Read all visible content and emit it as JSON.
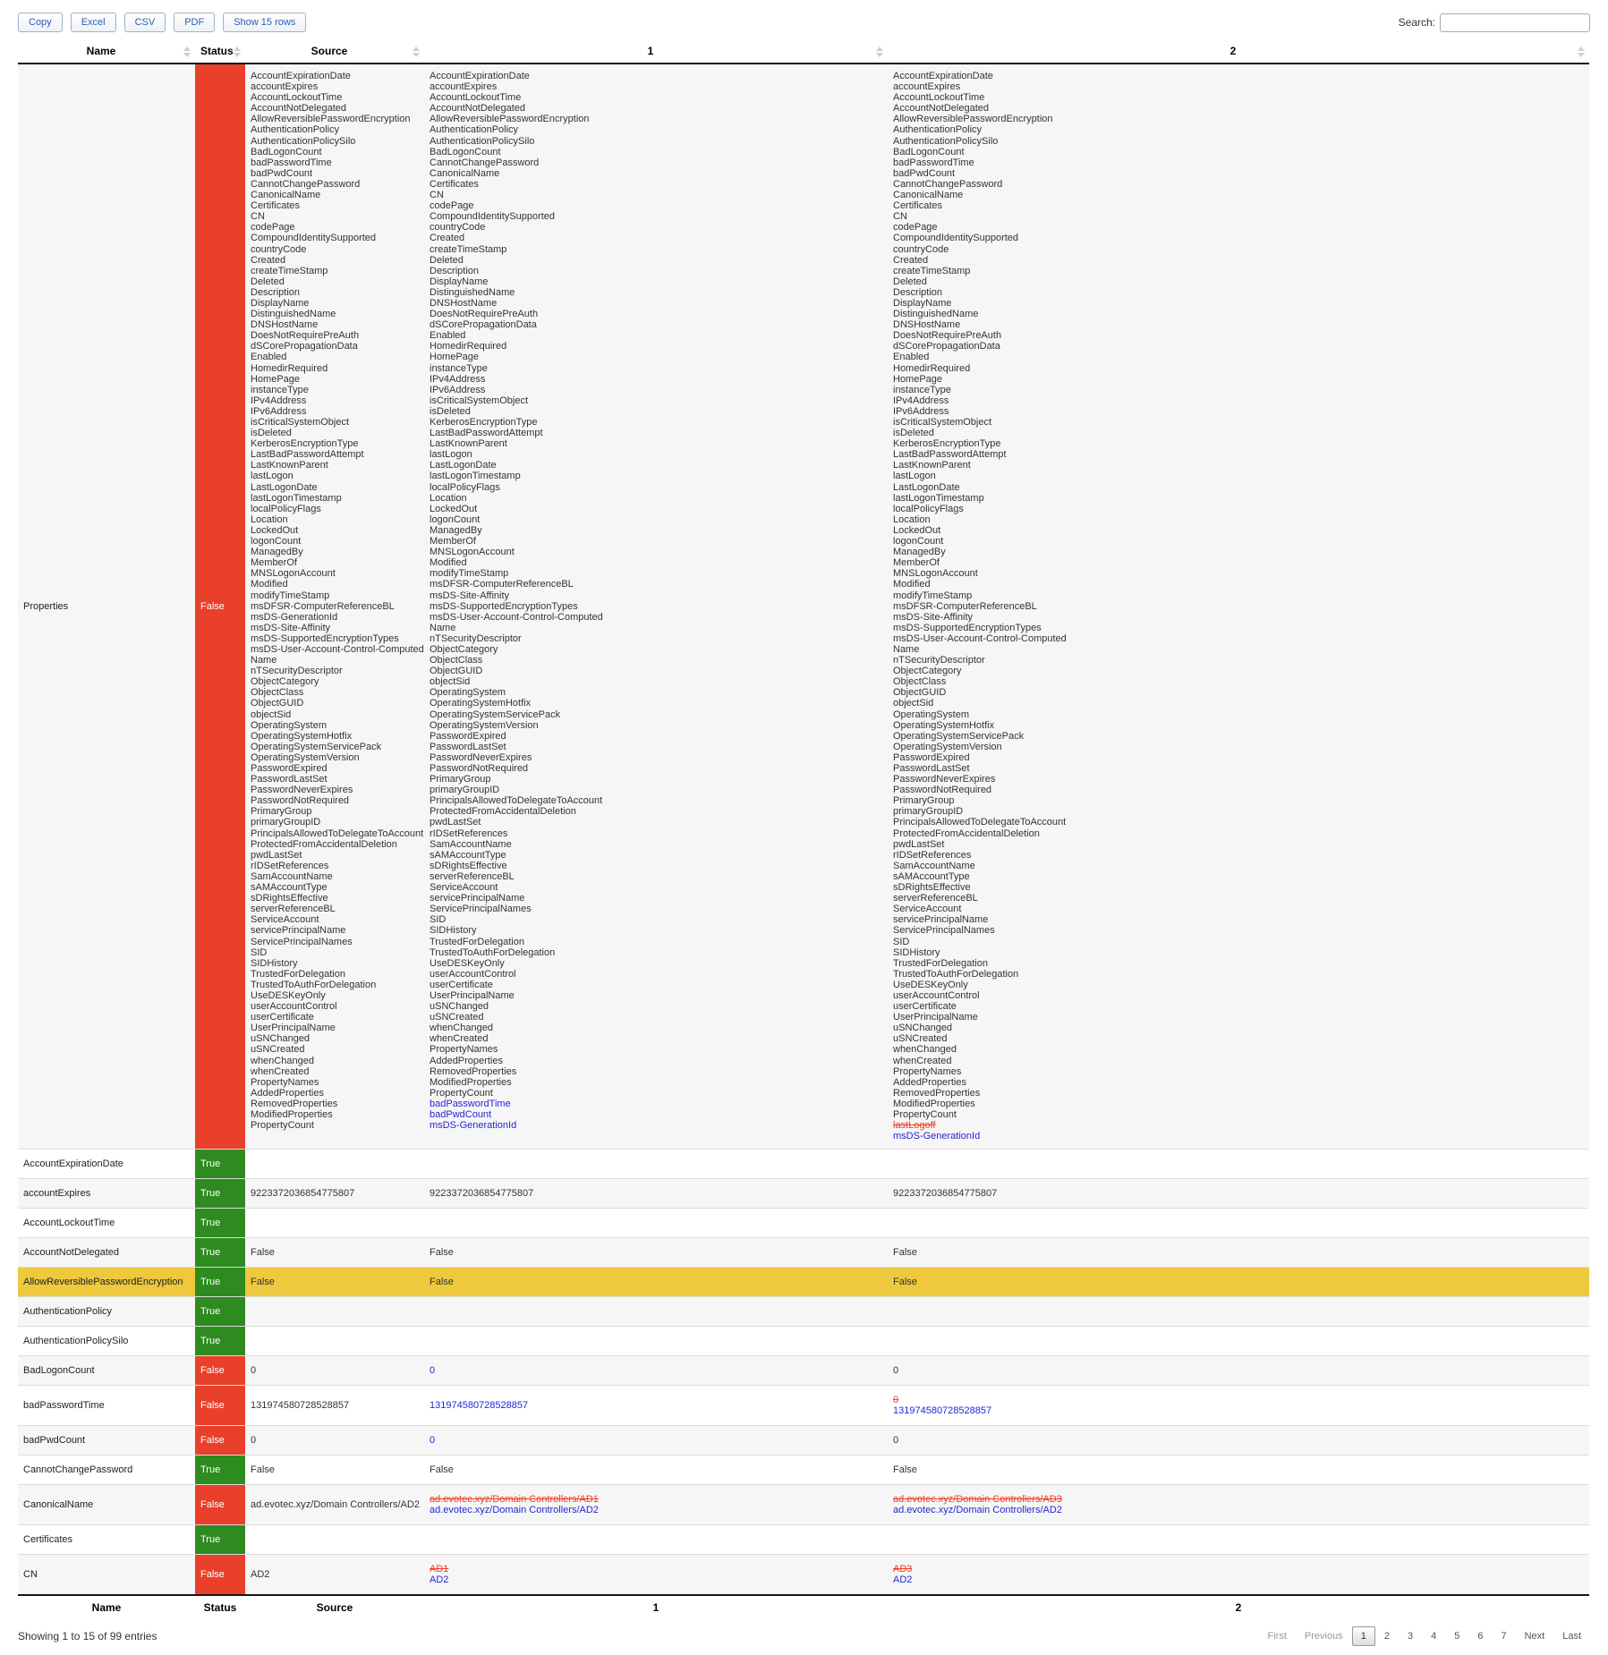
{
  "colors": {
    "status_true": "#2e8b20",
    "status_false": "#e8402a",
    "added": "#2424d8",
    "removed": "#f23c22",
    "highlight": "#eec83d"
  },
  "toolbar": {
    "buttons": [
      "Copy",
      "Excel",
      "CSV",
      "PDF",
      "Show 15 rows"
    ],
    "search_label": "Search:",
    "search_value": ""
  },
  "table": {
    "columns": [
      "Name",
      "Status",
      "Source",
      "1",
      "2"
    ],
    "properties_row": {
      "name": "Properties",
      "status": "False",
      "source_items": [
        "AccountExpirationDate",
        "accountExpires",
        "AccountLockoutTime",
        "AccountNotDelegated",
        "AllowReversiblePasswordEncryption",
        "AuthenticationPolicy",
        "AuthenticationPolicySilo",
        "BadLogonCount",
        "badPasswordTime",
        "badPwdCount",
        "CannotChangePassword",
        "CanonicalName",
        "Certificates",
        "CN",
        "codePage",
        "CompoundIdentitySupported",
        "countryCode",
        "Created",
        "createTimeStamp",
        "Deleted",
        "Description",
        "DisplayName",
        "DistinguishedName",
        "DNSHostName",
        "DoesNotRequirePreAuth",
        "dSCorePropagationData",
        "Enabled",
        "HomedirRequired",
        "HomePage",
        "instanceType",
        "IPv4Address",
        "IPv6Address",
        "isCriticalSystemObject",
        "isDeleted",
        "KerberosEncryptionType",
        "LastBadPasswordAttempt",
        "LastKnownParent",
        "lastLogon",
        "LastLogonDate",
        "lastLogonTimestamp",
        "localPolicyFlags",
        "Location",
        "LockedOut",
        "logonCount",
        "ManagedBy",
        "MemberOf",
        "MNSLogonAccount",
        "Modified",
        "modifyTimeStamp",
        "msDFSR-ComputerReferenceBL",
        "msDS-GenerationId",
        "msDS-Site-Affinity",
        "msDS-SupportedEncryptionTypes",
        "msDS-User-Account-Control-Computed",
        "Name",
        "nTSecurityDescriptor",
        "ObjectCategory",
        "ObjectClass",
        "ObjectGUID",
        "objectSid",
        "OperatingSystem",
        "OperatingSystemHotfix",
        "OperatingSystemServicePack",
        "OperatingSystemVersion",
        "PasswordExpired",
        "PasswordLastSet",
        "PasswordNeverExpires",
        "PasswordNotRequired",
        "PrimaryGroup",
        "primaryGroupID",
        "PrincipalsAllowedToDelegateToAccount",
        "ProtectedFromAccidentalDeletion",
        "pwdLastSet",
        "rIDSetReferences",
        "SamAccountName",
        "sAMAccountType",
        "sDRightsEffective",
        "serverReferenceBL",
        "ServiceAccount",
        "servicePrincipalName",
        "ServicePrincipalNames",
        "SID",
        "SIDHistory",
        "TrustedForDelegation",
        "TrustedToAuthForDelegation",
        "UseDESKeyOnly",
        "userAccountControl",
        "userCertificate",
        "UserPrincipalName",
        "uSNChanged",
        "uSNCreated",
        "whenChanged",
        "whenCreated",
        "PropertyNames",
        "AddedProperties",
        "RemovedProperties",
        "ModifiedProperties",
        "PropertyCount"
      ],
      "col1_items": [
        "AccountExpirationDate",
        "accountExpires",
        "AccountLockoutTime",
        "AccountNotDelegated",
        "AllowReversiblePasswordEncryption",
        "AuthenticationPolicy",
        "AuthenticationPolicySilo",
        "BadLogonCount",
        "CannotChangePassword",
        "CanonicalName",
        "Certificates",
        "CN",
        "codePage",
        "CompoundIdentitySupported",
        "countryCode",
        "Created",
        "createTimeStamp",
        "Deleted",
        "Description",
        "DisplayName",
        "DistinguishedName",
        "DNSHostName",
        "DoesNotRequirePreAuth",
        "dSCorePropagationData",
        "Enabled",
        "HomedirRequired",
        "HomePage",
        "instanceType",
        "IPv4Address",
        "IPv6Address",
        "isCriticalSystemObject",
        "isDeleted",
        "KerberosEncryptionType",
        "LastBadPasswordAttempt",
        "LastKnownParent",
        "lastLogon",
        "LastLogonDate",
        "lastLogonTimestamp",
        "localPolicyFlags",
        "Location",
        "LockedOut",
        "logonCount",
        "ManagedBy",
        "MemberOf",
        "MNSLogonAccount",
        "Modified",
        "modifyTimeStamp",
        "msDFSR-ComputerReferenceBL",
        "msDS-Site-Affinity",
        "msDS-SupportedEncryptionTypes",
        "msDS-User-Account-Control-Computed",
        "Name",
        "nTSecurityDescriptor",
        "ObjectCategory",
        "ObjectClass",
        "ObjectGUID",
        "objectSid",
        "OperatingSystem",
        "OperatingSystemHotfix",
        "OperatingSystemServicePack",
        "OperatingSystemVersion",
        "PasswordExpired",
        "PasswordLastSet",
        "PasswordNeverExpires",
        "PasswordNotRequired",
        "PrimaryGroup",
        "primaryGroupID",
        "PrincipalsAllowedToDelegateToAccount",
        "ProtectedFromAccidentalDeletion",
        "pwdLastSet",
        "rIDSetReferences",
        "SamAccountName",
        "sAMAccountType",
        "sDRightsEffective",
        "serverReferenceBL",
        "ServiceAccount",
        "servicePrincipalName",
        "ServicePrincipalNames",
        "SID",
        "SIDHistory",
        "TrustedForDelegation",
        "TrustedToAuthForDelegation",
        "UseDESKeyOnly",
        "userAccountControl",
        "userCertificate",
        "UserPrincipalName",
        "uSNChanged",
        "uSNCreated",
        "whenChanged",
        "whenCreated",
        "PropertyNames",
        "AddedProperties",
        "RemovedProperties",
        "ModifiedProperties",
        "PropertyCount",
        "+badPasswordTime",
        "+badPwdCount",
        "+msDS-GenerationId"
      ],
      "col2_items": [
        "AccountExpirationDate",
        "accountExpires",
        "AccountLockoutTime",
        "AccountNotDelegated",
        "AllowReversiblePasswordEncryption",
        "AuthenticationPolicy",
        "AuthenticationPolicySilo",
        "BadLogonCount",
        "badPasswordTime",
        "badPwdCount",
        "CannotChangePassword",
        "CanonicalName",
        "Certificates",
        "CN",
        "codePage",
        "CompoundIdentitySupported",
        "countryCode",
        "Created",
        "createTimeStamp",
        "Deleted",
        "Description",
        "DisplayName",
        "DistinguishedName",
        "DNSHostName",
        "DoesNotRequirePreAuth",
        "dSCorePropagationData",
        "Enabled",
        "HomedirRequired",
        "HomePage",
        "instanceType",
        "IPv4Address",
        "IPv6Address",
        "isCriticalSystemObject",
        "isDeleted",
        "KerberosEncryptionType",
        "LastBadPasswordAttempt",
        "LastKnownParent",
        "lastLogon",
        "LastLogonDate",
        "lastLogonTimestamp",
        "localPolicyFlags",
        "Location",
        "LockedOut",
        "logonCount",
        "ManagedBy",
        "MemberOf",
        "MNSLogonAccount",
        "Modified",
        "modifyTimeStamp",
        "msDFSR-ComputerReferenceBL",
        "msDS-Site-Affinity",
        "msDS-SupportedEncryptionTypes",
        "msDS-User-Account-Control-Computed",
        "Name",
        "nTSecurityDescriptor",
        "ObjectCategory",
        "ObjectClass",
        "ObjectGUID",
        "objectSid",
        "OperatingSystem",
        "OperatingSystemHotfix",
        "OperatingSystemServicePack",
        "OperatingSystemVersion",
        "PasswordExpired",
        "PasswordLastSet",
        "PasswordNeverExpires",
        "PasswordNotRequired",
        "PrimaryGroup",
        "primaryGroupID",
        "PrincipalsAllowedToDelegateToAccount",
        "ProtectedFromAccidentalDeletion",
        "pwdLastSet",
        "rIDSetReferences",
        "SamAccountName",
        "sAMAccountType",
        "sDRightsEffective",
        "serverReferenceBL",
        "ServiceAccount",
        "servicePrincipalName",
        "ServicePrincipalNames",
        "SID",
        "SIDHistory",
        "TrustedForDelegation",
        "TrustedToAuthForDelegation",
        "UseDESKeyOnly",
        "userAccountControl",
        "userCertificate",
        "UserPrincipalName",
        "uSNChanged",
        "uSNCreated",
        "whenChanged",
        "whenCreated",
        "PropertyNames",
        "AddedProperties",
        "RemovedProperties",
        "ModifiedProperties",
        "PropertyCount",
        "-lastLogoff",
        "+msDS-GenerationId"
      ]
    },
    "rows": [
      {
        "name": "AccountExpirationDate",
        "status": "True",
        "cells": [
          [],
          [],
          []
        ]
      },
      {
        "name": "accountExpires",
        "status": "True",
        "cells": [
          [
            "9223372036854775807"
          ],
          [
            "9223372036854775807"
          ],
          [
            "9223372036854775807"
          ]
        ]
      },
      {
        "name": "AccountLockoutTime",
        "status": "True",
        "cells": [
          [],
          [],
          []
        ]
      },
      {
        "name": "AccountNotDelegated",
        "status": "True",
        "cells": [
          [
            "False"
          ],
          [
            "False"
          ],
          [
            "False"
          ]
        ]
      },
      {
        "name": "AllowReversiblePasswordEncryption",
        "status": "True",
        "highlight": true,
        "cells": [
          [
            "False"
          ],
          [
            "False"
          ],
          [
            "False"
          ]
        ]
      },
      {
        "name": "AuthenticationPolicy",
        "status": "True",
        "cells": [
          [],
          [],
          []
        ]
      },
      {
        "name": "AuthenticationPolicySilo",
        "status": "True",
        "cells": [
          [],
          [],
          []
        ]
      },
      {
        "name": "BadLogonCount",
        "status": "False",
        "cells": [
          [
            "0"
          ],
          [
            "+0"
          ],
          [
            "0"
          ]
        ]
      },
      {
        "name": "badPasswordTime",
        "status": "False",
        "cells": [
          [
            "131974580728528857"
          ],
          [
            "+131974580728528857"
          ],
          [
            "-0",
            "+131974580728528857"
          ]
        ]
      },
      {
        "name": "badPwdCount",
        "status": "False",
        "cells": [
          [
            "0"
          ],
          [
            "+0"
          ],
          [
            "0"
          ]
        ]
      },
      {
        "name": "CannotChangePassword",
        "status": "True",
        "cells": [
          [
            "False"
          ],
          [
            "False"
          ],
          [
            "False"
          ]
        ]
      },
      {
        "name": "CanonicalName",
        "status": "False",
        "cells": [
          [
            "ad.evotec.xyz/Domain Controllers/AD2"
          ],
          [
            "-ad.evotec.xyz/Domain Controllers/AD1",
            "+ad.evotec.xyz/Domain Controllers/AD2"
          ],
          [
            "-ad.evotec.xyz/Domain Controllers/AD3",
            "+ad.evotec.xyz/Domain Controllers/AD2"
          ]
        ]
      },
      {
        "name": "Certificates",
        "status": "True",
        "cells": [
          [],
          [],
          []
        ]
      },
      {
        "name": "CN",
        "status": "False",
        "cells": [
          [
            "AD2"
          ],
          [
            "-AD1",
            "+AD2"
          ],
          [
            "-AD3",
            "+AD2"
          ]
        ]
      }
    ]
  },
  "footer": {
    "info": "Showing 1 to 15 of 99 entries",
    "pagination": [
      {
        "label": "First",
        "state": "disabled"
      },
      {
        "label": "Previous",
        "state": "disabled"
      },
      {
        "label": "1",
        "state": "active"
      },
      {
        "label": "2",
        "state": "normal"
      },
      {
        "label": "3",
        "state": "normal"
      },
      {
        "label": "4",
        "state": "normal"
      },
      {
        "label": "5",
        "state": "normal"
      },
      {
        "label": "6",
        "state": "normal"
      },
      {
        "label": "7",
        "state": "normal"
      },
      {
        "label": "Next",
        "state": "normal"
      },
      {
        "label": "Last",
        "state": "normal"
      }
    ]
  }
}
